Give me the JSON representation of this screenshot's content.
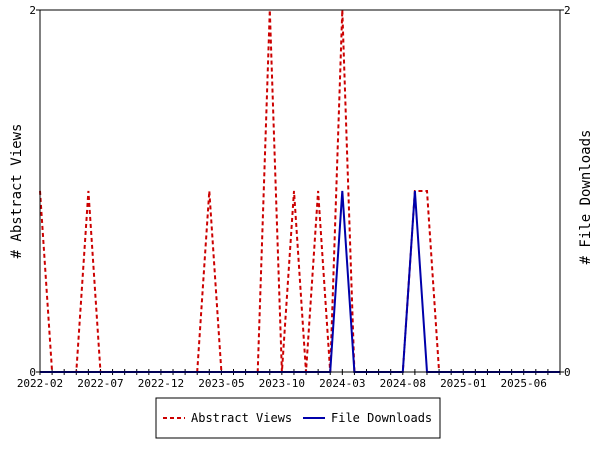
{
  "chart_data": {
    "type": "line",
    "x_tick_labels": [
      "2022-02",
      "2022-07",
      "2022-12",
      "2023-05",
      "2023-10",
      "2024-03",
      "2024-08",
      "2025-01",
      "2025-06"
    ],
    "ylabel_left": "# Abstract Views",
    "ylabel_right": "# File Downloads",
    "ylim_left": [
      0,
      2
    ],
    "ylim_right": [
      0,
      2
    ],
    "y_tick_labels_left": [
      "0",
      "2"
    ],
    "y_tick_labels_right": [
      "0",
      "2"
    ],
    "legend_position": "bottom",
    "grid": false,
    "x": [
      "2022-02",
      "2022-03",
      "2022-04",
      "2022-05",
      "2022-06",
      "2022-07",
      "2022-08",
      "2022-09",
      "2022-10",
      "2022-11",
      "2022-12",
      "2023-01",
      "2023-02",
      "2023-03",
      "2023-04",
      "2023-05",
      "2023-06",
      "2023-07",
      "2023-08",
      "2023-09",
      "2023-10",
      "2023-11",
      "2023-12",
      "2024-01",
      "2024-02",
      "2024-03",
      "2024-04",
      "2024-05",
      "2024-06",
      "2024-07",
      "2024-08",
      "2024-09",
      "2024-10",
      "2024-11",
      "2024-12",
      "2025-01",
      "2025-02",
      "2025-03",
      "2025-04",
      "2025-05",
      "2025-06",
      "2025-07",
      "2025-08",
      "2025-09"
    ],
    "series": [
      {
        "name": "Abstract Views",
        "axis": "left",
        "color": "#cc0000",
        "dash": true,
        "values": [
          1,
          0,
          0,
          0,
          1,
          0,
          0,
          0,
          0,
          0,
          0,
          0,
          0,
          0,
          1,
          0,
          0,
          0,
          0,
          2,
          0,
          1,
          0,
          1,
          0,
          2,
          0,
          0,
          0,
          0,
          0,
          1,
          1,
          0,
          0,
          0,
          0,
          0,
          0,
          0,
          0,
          0,
          0,
          0
        ]
      },
      {
        "name": "File Downloads",
        "axis": "right",
        "color": "#0000aa",
        "dash": false,
        "values": [
          0,
          0,
          0,
          0,
          0,
          0,
          0,
          0,
          0,
          0,
          0,
          0,
          0,
          0,
          0,
          0,
          0,
          0,
          0,
          0,
          0,
          0,
          0,
          0,
          0,
          1,
          0,
          0,
          0,
          0,
          0,
          1,
          0,
          0,
          0,
          0,
          0,
          0,
          0,
          0,
          0,
          0,
          0,
          0
        ]
      }
    ]
  }
}
